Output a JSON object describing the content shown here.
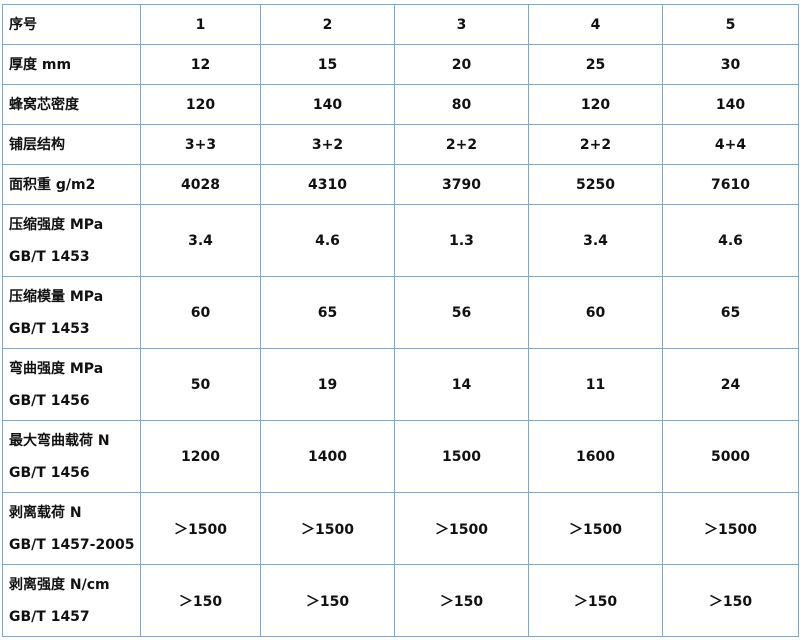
{
  "table": {
    "rows": [
      {
        "label": [
          "序号"
        ],
        "values": [
          "1",
          "2",
          "3",
          "4",
          "5"
        ]
      },
      {
        "label": [
          "厚度 mm"
        ],
        "values": [
          "12",
          "15",
          "20",
          "25",
          "30"
        ]
      },
      {
        "label": [
          "蜂窝芯密度"
        ],
        "values": [
          "120",
          "140",
          "80",
          "120",
          "140"
        ]
      },
      {
        "label": [
          "铺层结构"
        ],
        "values": [
          "3+3",
          "3+2",
          "2+2",
          "2+2",
          "4+4"
        ]
      },
      {
        "label": [
          "面积重 g/m2"
        ],
        "values": [
          "4028",
          "4310",
          "3790",
          "5250",
          "7610"
        ]
      },
      {
        "label": [
          "压缩强度 MPa",
          "GB/T 1453"
        ],
        "values": [
          "3.4",
          "4.6",
          "1.3",
          "3.4",
          "4.6"
        ]
      },
      {
        "label": [
          "压缩模量 MPa",
          "GB/T 1453"
        ],
        "values": [
          "60",
          "65",
          "56",
          "60",
          "65"
        ]
      },
      {
        "label": [
          "弯曲强度 MPa",
          "GB/T 1456"
        ],
        "values": [
          "50",
          "19",
          "14",
          "11",
          "24"
        ]
      },
      {
        "label": [
          "最大弯曲载荷 N",
          "GB/T 1456"
        ],
        "values": [
          "1200",
          "1400",
          "1500",
          "1600",
          "5000"
        ]
      },
      {
        "label": [
          "剥离载荷 N",
          "GB/T 1457-2005"
        ],
        "values": [
          "＞1500",
          "＞1500",
          "＞1500",
          "＞1500",
          "＞1500"
        ]
      },
      {
        "label": [
          "剥离强度 N/cm",
          "GB/T 1457"
        ],
        "values": [
          "＞150",
          "＞150",
          "＞150",
          "＞150",
          "＞150"
        ]
      }
    ],
    "border_color": "#7fa6d8"
  }
}
